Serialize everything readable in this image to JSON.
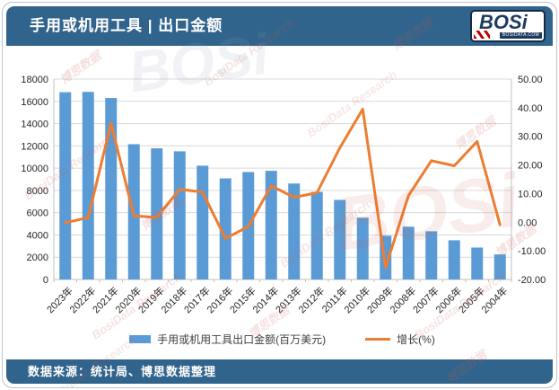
{
  "header": {
    "title": "手用或机用工具 | 出口金额",
    "logo": {
      "word": "BOSi",
      "domain": "BOSIDATA.COM"
    }
  },
  "footer": {
    "source": "数据来源：统计局、博思数据整理"
  },
  "legend": [
    {
      "label": "手用或机用工具出口金额(百万美元)",
      "marker": "bar",
      "color": "#5B9BD5"
    },
    {
      "label": "增长(%)",
      "marker": "line",
      "color": "#ED7D31"
    }
  ],
  "colors": {
    "header_bg": "#31648C",
    "footer_bg": "#31648C",
    "bar": "#5B9BD5",
    "line": "#ED7D31",
    "gridline": "#D9D9D9",
    "axis": "#BFBFBF",
    "axis_text": "#262626",
    "watermark_red": "#C85A50",
    "watermark_gray": "#8FA3B8"
  },
  "watermark": {
    "items": [
      "博思数据",
      "BosiData Research",
      "BOSi"
    ]
  },
  "chart_data": {
    "type": "combo",
    "title": "手用或机用工具 | 出口金额",
    "categories": [
      "2023年",
      "2022年",
      "2021年",
      "2020年",
      "2019年",
      "2018年",
      "2017年",
      "2016年",
      "2015年",
      "2014年",
      "2013年",
      "2012年",
      "2011年",
      "2010年",
      "2009年",
      "2008年",
      "2007年",
      "2006年",
      "2005年",
      "2004年"
    ],
    "series": [
      {
        "name": "手用或机用工具出口金额(百万美元)",
        "type": "bar",
        "yaxis": "left",
        "color": "#5B9BD5",
        "values": [
          16820,
          16850,
          16300,
          12150,
          11780,
          11510,
          10220,
          9080,
          9650,
          9760,
          8620,
          7870,
          7150,
          5550,
          3930,
          4740,
          4330,
          3520,
          2870,
          2250
        ]
      },
      {
        "name": "增长(%)",
        "type": "line",
        "yaxis": "right",
        "color": "#ED7D31",
        "values": [
          -0.2,
          1.6,
          34.6,
          2.2,
          1.7,
          11.5,
          10.5,
          -5.7,
          -1.5,
          12.7,
          8.7,
          10.3,
          26.0,
          39.5,
          -15.8,
          9.3,
          21.5,
          19.7,
          28.2,
          -0.9
        ]
      }
    ],
    "left_axis": {
      "min": 0,
      "max": 18000,
      "step": 2000,
      "decimals": 0
    },
    "right_axis": {
      "min": -20,
      "max": 50,
      "step": 10,
      "decimals": 2
    },
    "grid": true,
    "legend_position": "bottom"
  }
}
